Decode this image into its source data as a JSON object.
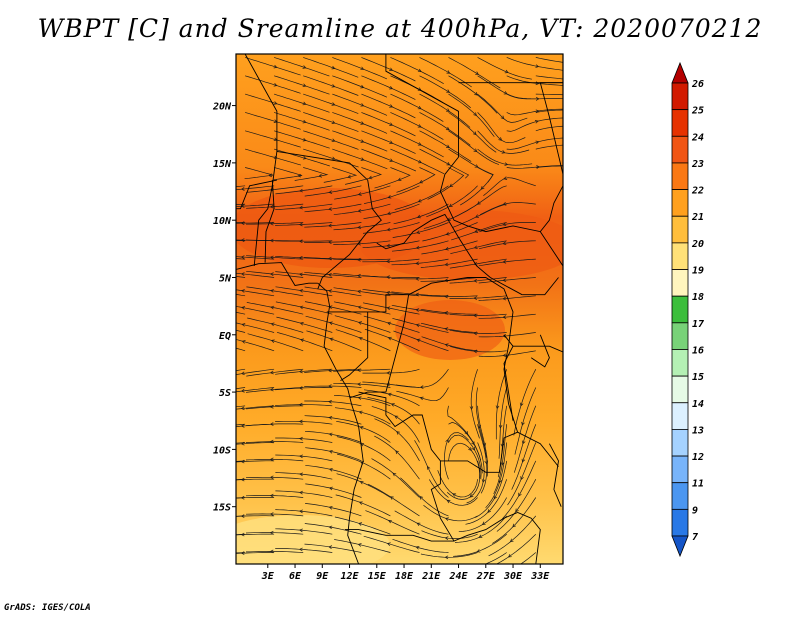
{
  "title": "WBPT [C] and Sreamline at 400hPa, VT: 2020070212",
  "footer": "GrADS: IGES/COLA",
  "map": {
    "lon_range": [
      -0.5,
      35.5
    ],
    "lat_range": [
      -20.0,
      24.5
    ],
    "lon_ticks": [
      {
        "value": 3,
        "label": "3E"
      },
      {
        "value": 6,
        "label": "6E"
      },
      {
        "value": 9,
        "label": "9E"
      },
      {
        "value": 12,
        "label": "12E"
      },
      {
        "value": 15,
        "label": "15E"
      },
      {
        "value": 18,
        "label": "18E"
      },
      {
        "value": 21,
        "label": "21E"
      },
      {
        "value": 24,
        "label": "24E"
      },
      {
        "value": 27,
        "label": "27E"
      },
      {
        "value": 30,
        "label": "30E"
      },
      {
        "value": 33,
        "label": "33E"
      }
    ],
    "lat_ticks": [
      {
        "value": 20,
        "label": "20N"
      },
      {
        "value": 15,
        "label": "15N"
      },
      {
        "value": 10,
        "label": "10N"
      },
      {
        "value": 5,
        "label": "5N"
      },
      {
        "value": 0,
        "label": "EQ"
      },
      {
        "value": -5,
        "label": "5S"
      },
      {
        "value": -10,
        "label": "10S"
      },
      {
        "value": -15,
        "label": "15S"
      }
    ],
    "features": {
      "anticyclone_center": [
        25.0,
        -13.5
      ],
      "high_wbpt_band": {
        "lat_center": 9.0,
        "value": 22.5
      }
    }
  },
  "colorbar": {
    "levels": [
      "26",
      "25",
      "24",
      "23",
      "22",
      "21",
      "20",
      "19",
      "18",
      "17",
      "16",
      "15",
      "14",
      "13",
      "12",
      "11",
      "9",
      "7"
    ],
    "colors": [
      "#b40000",
      "#d21a00",
      "#e63200",
      "#f05514",
      "#fa7814",
      "#ffa01e",
      "#ffbe3c",
      "#ffe178",
      "#fff5be",
      "#3cbe3c",
      "#78d278",
      "#b4f0b4",
      "#e6fae6",
      "#dcf0ff",
      "#a5d2ff",
      "#78b4fa",
      "#4b96f0",
      "#2878e6",
      "#1455c8"
    ]
  }
}
